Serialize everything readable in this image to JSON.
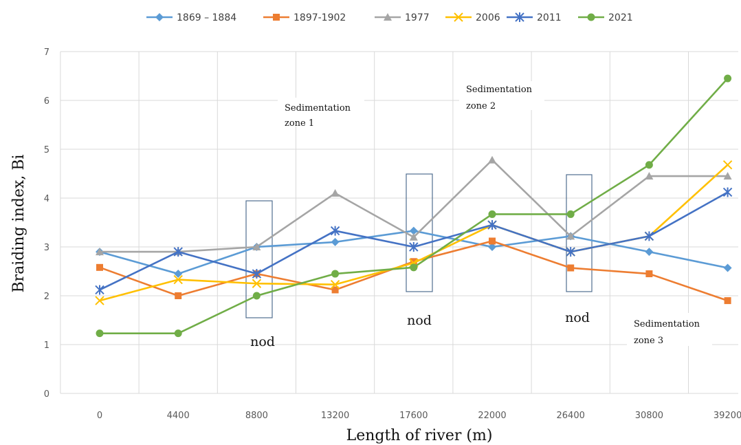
{
  "chart_data": {
    "type": "line",
    "title": "",
    "xlabel": "Length of river (m)",
    "ylabel": "Braiding index, Bi",
    "categories": [
      "0",
      "4400",
      "8800",
      "13200",
      "17600",
      "22000",
      "26400",
      "30800",
      "39200"
    ],
    "ylim": [
      0,
      7
    ],
    "yticks": [
      0,
      1,
      2,
      3,
      4,
      5,
      6,
      7
    ],
    "grid": true,
    "legend_position": "top",
    "series": [
      {
        "name": "1869 – 1884",
        "color": "#5b9bd5",
        "marker": "diamond",
        "values": [
          2.9,
          2.45,
          3.0,
          3.1,
          3.33,
          3.0,
          3.22,
          2.9,
          2.57
        ]
      },
      {
        "name": "1897-1902",
        "color": "#ed7d31",
        "marker": "square",
        "values": [
          2.58,
          2.0,
          2.45,
          2.12,
          2.7,
          3.12,
          2.57,
          2.45,
          1.9
        ]
      },
      {
        "name": "1977",
        "color": "#a5a5a5",
        "marker": "triangle",
        "values": [
          2.9,
          2.9,
          3.0,
          4.1,
          3.2,
          4.78,
          3.22,
          4.45,
          4.45
        ]
      },
      {
        "name": "2006",
        "color": "#ffc000",
        "marker": "x",
        "values": [
          1.9,
          2.33,
          2.25,
          2.23,
          2.67,
          3.45,
          2.9,
          3.22,
          4.68
        ]
      },
      {
        "name": "2011",
        "color": "#4472c4",
        "marker": "star",
        "values": [
          2.12,
          2.9,
          2.45,
          3.33,
          3.0,
          3.45,
          2.9,
          3.22,
          4.12
        ]
      },
      {
        "name": "2021",
        "color": "#70ad47",
        "marker": "circle",
        "values": [
          1.23,
          1.23,
          2.0,
          2.45,
          2.58,
          3.67,
          3.67,
          4.68,
          6.45
        ]
      }
    ],
    "annotations": [
      {
        "lines": [
          "Sedimentation",
          "zone 1"
        ]
      },
      {
        "lines": [
          "Sedimentation",
          "zone 2"
        ]
      },
      {
        "lines": [
          "Sedimentation",
          "zone 3"
        ]
      }
    ],
    "nodes": [
      {
        "label": "nod"
      },
      {
        "label": "nod"
      },
      {
        "label": "nod"
      }
    ]
  }
}
